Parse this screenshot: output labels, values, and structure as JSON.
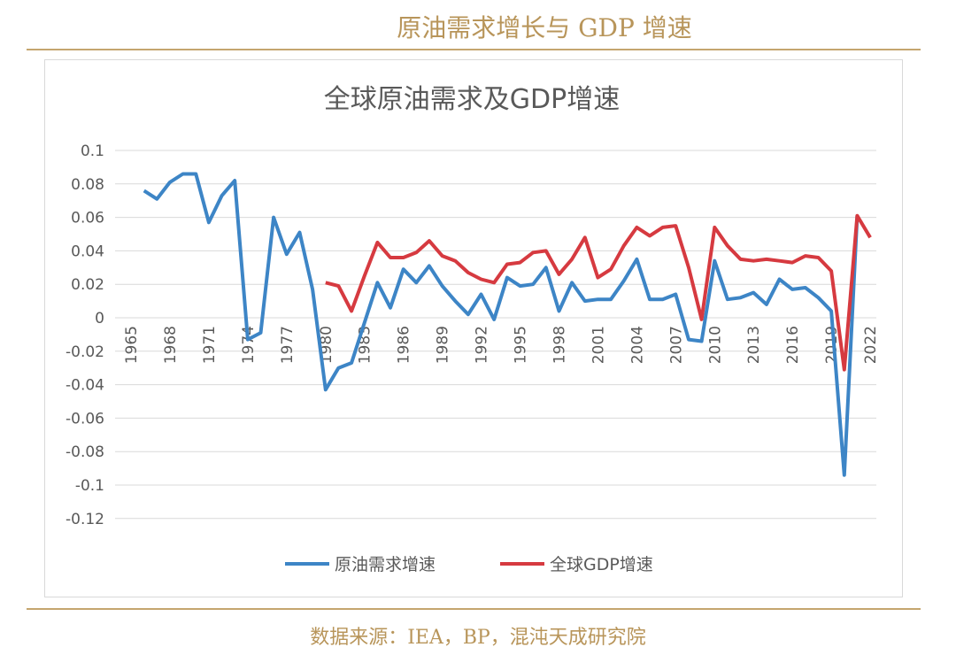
{
  "header": {
    "title": "原油需求增长与 GDP 增速"
  },
  "footer": {
    "source": "数据来源：IEA，BP，混沌天成研究院"
  },
  "colors": {
    "accent": "#b8955a",
    "oil": "#3d85c6",
    "gdp": "#d63a40"
  },
  "chart_data": {
    "type": "line",
    "title": "全球原油需求及GDP增速",
    "xlabel": "",
    "ylabel": "",
    "ylim": [
      -0.12,
      0.1
    ],
    "yticks": [
      "0.1",
      "0.08",
      "0.06",
      "0.04",
      "0.02",
      "0",
      "-0.02",
      "-0.04",
      "-0.06",
      "-0.08",
      "-0.1",
      "-0.12"
    ],
    "xticks": [
      "1965",
      "1968",
      "1971",
      "1974",
      "1977",
      "1980",
      "1983",
      "1986",
      "1989",
      "1992",
      "1995",
      "1998",
      "2001",
      "2004",
      "2007",
      "2010",
      "2013",
      "2016",
      "2019",
      "2022"
    ],
    "grid": true,
    "legend": "bottom",
    "series": [
      {
        "name": "原油需求增速",
        "start_year": 1966,
        "values": [
          0.076,
          0.071,
          0.081,
          0.086,
          0.086,
          0.057,
          0.073,
          0.082,
          -0.013,
          -0.009,
          0.06,
          0.038,
          0.051,
          0.017,
          -0.043,
          -0.03,
          -0.027,
          -0.003,
          0.021,
          0.006,
          0.029,
          0.021,
          0.031,
          0.019,
          0.01,
          0.002,
          0.014,
          -0.001,
          0.024,
          0.019,
          0.02,
          0.03,
          0.004,
          0.021,
          0.01,
          0.011,
          0.011,
          0.022,
          0.035,
          0.011,
          0.011,
          0.014,
          -0.013,
          -0.014,
          0.034,
          0.011,
          0.012,
          0.015,
          0.008,
          0.023,
          0.017,
          0.018,
          0.012,
          0.004,
          -0.094,
          0.061
        ]
      },
      {
        "name": "全球GDP增速",
        "start_year": 1980,
        "values": [
          0.021,
          0.019,
          0.004,
          0.025,
          0.045,
          0.036,
          0.036,
          0.039,
          0.046,
          0.037,
          0.034,
          0.027,
          0.023,
          0.021,
          0.032,
          0.033,
          0.039,
          0.04,
          0.026,
          0.035,
          0.048,
          0.024,
          0.029,
          0.043,
          0.054,
          0.049,
          0.054,
          0.055,
          0.03,
          -0.001,
          0.054,
          0.043,
          0.035,
          0.034,
          0.035,
          0.034,
          0.033,
          0.037,
          0.036,
          0.028,
          -0.031,
          0.061,
          0.048
        ]
      }
    ]
  }
}
